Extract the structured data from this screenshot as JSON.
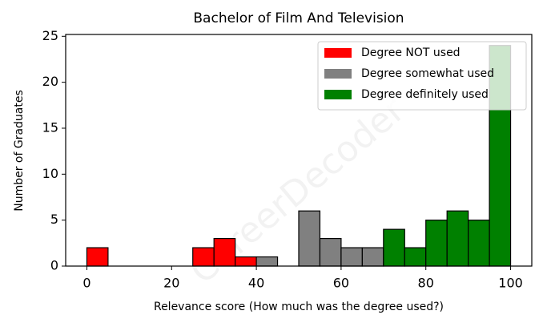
{
  "chart_data": {
    "type": "histogram",
    "title": "Bachelor of Film And Television",
    "xlabel": "Relevance score (How much was the degree used?)",
    "ylabel": "Number of Graduates",
    "watermark": "CareerDecoder",
    "bins": [
      0,
      5,
      10,
      15,
      20,
      25,
      30,
      35,
      40,
      45,
      50,
      55,
      60,
      65,
      70,
      75,
      80,
      85,
      90,
      95,
      100
    ],
    "series": [
      {
        "name": "Degree NOT used",
        "color": "#ff0000",
        "values": [
          2,
          0,
          0,
          0,
          0,
          2,
          3,
          1,
          0,
          0,
          0,
          0,
          0,
          0,
          0,
          0,
          0,
          0,
          0,
          0
        ]
      },
      {
        "name": "Degree somewhat used",
        "color": "#808080",
        "values": [
          0,
          0,
          0,
          0,
          0,
          0,
          0,
          0,
          1,
          0,
          6,
          3,
          2,
          2,
          0,
          0,
          0,
          0,
          0,
          0
        ]
      },
      {
        "name": "Degree definitely used",
        "color": "#008000",
        "values": [
          0,
          0,
          0,
          0,
          0,
          0,
          0,
          0,
          0,
          0,
          0,
          0,
          0,
          0,
          4,
          2,
          5,
          6,
          5,
          24
        ]
      }
    ],
    "xlim": [
      -5,
      105
    ],
    "ylim": [
      0,
      25.2
    ],
    "xticks": [
      0,
      20,
      40,
      60,
      80,
      100
    ],
    "yticks": [
      0,
      5,
      10,
      15,
      20,
      25
    ],
    "legend": "upper right"
  }
}
